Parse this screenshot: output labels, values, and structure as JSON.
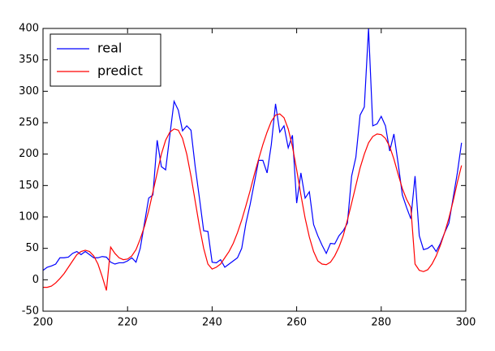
{
  "chart_data": {
    "type": "line",
    "x": [
      200,
      201,
      202,
      203,
      204,
      205,
      206,
      207,
      208,
      209,
      210,
      211,
      212,
      213,
      214,
      215,
      216,
      217,
      218,
      219,
      220,
      221,
      222,
      223,
      224,
      225,
      226,
      227,
      228,
      229,
      230,
      231,
      232,
      233,
      234,
      235,
      236,
      237,
      238,
      239,
      240,
      241,
      242,
      243,
      244,
      245,
      246,
      247,
      248,
      249,
      250,
      251,
      252,
      253,
      254,
      255,
      256,
      257,
      258,
      259,
      260,
      261,
      262,
      263,
      264,
      265,
      266,
      267,
      268,
      269,
      270,
      271,
      272,
      273,
      274,
      275,
      276,
      277,
      278,
      279,
      280,
      281,
      282,
      283,
      284,
      285,
      286,
      287,
      288,
      289,
      290,
      291,
      292,
      293,
      294,
      295,
      296,
      297,
      298,
      299
    ],
    "series": [
      {
        "name": "real",
        "color": "#0000ff",
        "values": [
          15,
          20,
          22,
          25,
          35,
          35,
          36,
          42,
          45,
          40,
          45,
          40,
          35,
          35,
          37,
          36,
          28,
          25,
          27,
          27,
          30,
          35,
          28,
          50,
          90,
          130,
          135,
          222,
          180,
          175,
          230,
          284,
          270,
          237,
          245,
          238,
          180,
          130,
          78,
          77,
          28,
          27,
          32,
          20,
          25,
          30,
          35,
          50,
          90,
          120,
          155,
          190,
          190,
          170,
          215,
          280,
          235,
          245,
          210,
          230,
          122,
          170,
          130,
          140,
          88,
          70,
          55,
          42,
          58,
          57,
          70,
          78,
          90,
          165,
          195,
          262,
          275,
          400,
          245,
          248,
          260,
          245,
          205,
          232,
          185,
          135,
          115,
          97,
          165,
          70,
          48,
          50,
          55,
          45,
          58,
          75,
          90,
          130,
          170,
          218
        ]
      },
      {
        "name": "predict",
        "color": "#ff0000",
        "values": [
          -12,
          -12,
          -10,
          -5,
          2,
          10,
          20,
          30,
          40,
          45,
          47,
          45,
          38,
          25,
          5,
          -17,
          52,
          42,
          35,
          32,
          33,
          38,
          48,
          65,
          85,
          110,
          140,
          170,
          200,
          222,
          235,
          240,
          238,
          225,
          200,
          165,
          125,
          85,
          50,
          25,
          17,
          20,
          25,
          35,
          45,
          58,
          75,
          95,
          118,
          142,
          168,
          192,
          215,
          235,
          252,
          262,
          264,
          258,
          240,
          212,
          175,
          135,
          98,
          68,
          45,
          30,
          25,
          24,
          28,
          38,
          52,
          70,
          95,
          122,
          150,
          178,
          200,
          218,
          228,
          232,
          231,
          225,
          212,
          192,
          168,
          145,
          128,
          115,
          25,
          15,
          13,
          16,
          25,
          38,
          55,
          75,
          98,
          125,
          155,
          182
        ]
      }
    ],
    "xlim": [
      200,
      300
    ],
    "xticks": [
      200,
      220,
      240,
      260,
      280,
      300
    ],
    "ylim": [
      -50,
      400
    ],
    "yticks": [
      -50,
      0,
      50,
      100,
      150,
      200,
      250,
      300,
      350,
      400
    ],
    "grid": false,
    "legend": "upper left"
  }
}
